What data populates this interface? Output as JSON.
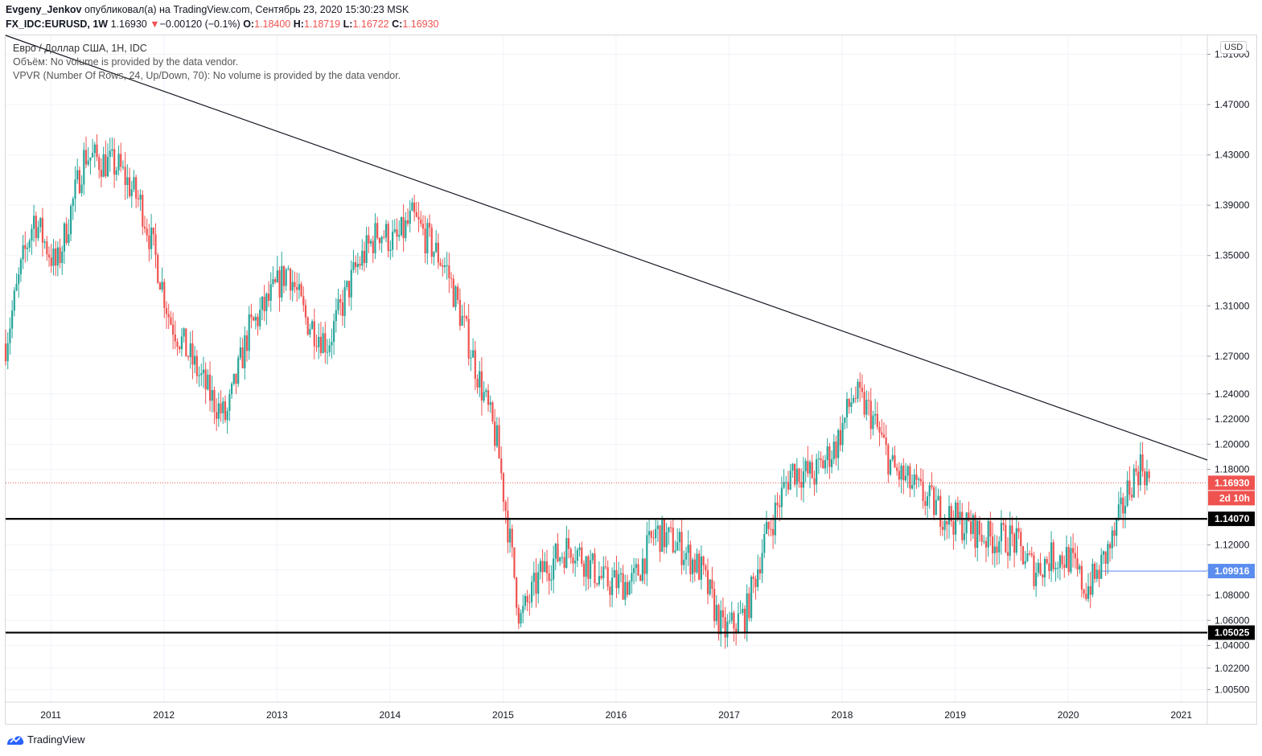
{
  "header": {
    "author": "Evgeny_Jenkov",
    "published": "опубликовал(а) на TradingView.com, Сентябрь 23, 2020 15:30:23 MSK",
    "symbol": "FX_IDC:EURUSD, 1W",
    "last": "1.16930",
    "change_arrow": "▼",
    "change": "−0.00120 (−0.1%)",
    "o_label": "O:",
    "o": "1.18400",
    "h_label": "H:",
    "h": "1.18719",
    "l_label": "L:",
    "l": "1.16722",
    "c_label": "C:",
    "c": "1.16930"
  },
  "legend": {
    "title": "Евро / Доллар США, 1H, IDC",
    "volume": "Объём: No volume is provided by the data vendor.",
    "vpvr": "VPVR (Number Of Rows, 24, Up/Down, 70): No volume is provided by the data vendor."
  },
  "currency": "USD",
  "footer": {
    "brand": "TradingView"
  },
  "colors": {
    "up": "#26a69a",
    "down": "#ef5350",
    "grid": "#f0f3fa",
    "trend": "#131722",
    "level": "#000000",
    "price_line": "#ef5350",
    "blue_level": "#5b8def"
  },
  "chart_data": {
    "type": "candlestick",
    "title": "Евро / Доллар США, 1H, IDC",
    "y_ticks": [
      "1.51000",
      "1.47000",
      "1.43000",
      "1.39000",
      "1.35000",
      "1.31000",
      "1.27000",
      "1.24000",
      "1.22000",
      "1.20000",
      "1.18000",
      "1.12000",
      "1.10000",
      "1.08000",
      "1.06000",
      "1.04000",
      "1.02200",
      "1.00500"
    ],
    "x_ticks": [
      "2011",
      "2012",
      "2013",
      "2014",
      "2015",
      "2016",
      "2017",
      "2018",
      "2019",
      "2020",
      "2021"
    ],
    "ylim": [
      0.995,
      1.525
    ],
    "xlim": [
      2010.6,
      2021.23
    ],
    "grid": true,
    "price_markers": [
      {
        "value": 1.1693,
        "label": "1.16930",
        "sublabel": "2d 10h",
        "kind": "last"
      },
      {
        "value": 1.1407,
        "label": "1.14070",
        "kind": "level"
      },
      {
        "value": 1.09916,
        "label": "1.09916",
        "kind": "blue"
      },
      {
        "value": 1.05025,
        "label": "1.05025",
        "kind": "level"
      }
    ],
    "trendline": {
      "x": [
        2010.6,
        2021.23
      ],
      "y": [
        1.525,
        1.1875
      ]
    },
    "horizontal_levels": [
      1.1407,
      1.05025
    ],
    "blue_level": {
      "x_start": 2020.3,
      "value": 1.09916
    },
    "close_path": {
      "x": [
        2010.6,
        2010.75,
        2010.85,
        2011.05,
        2011.3,
        2011.6,
        2011.8,
        2011.95,
        2012.05,
        2012.4,
        2012.55,
        2012.75,
        2012.9,
        2013.1,
        2013.25,
        2013.45,
        2013.7,
        2013.9,
        2014.05,
        2014.2,
        2014.35,
        2014.5,
        2014.7,
        2014.95,
        2015.05,
        2015.15,
        2015.35,
        2015.6,
        2015.9,
        2016.15,
        2016.35,
        2016.55,
        2016.75,
        2016.95,
        2017.15,
        2017.3,
        2017.55,
        2017.75,
        2017.95,
        2018.1,
        2018.25,
        2018.45,
        2018.7,
        2018.9,
        2019.1,
        2019.3,
        2019.5,
        2019.7,
        2019.85,
        2020.0,
        2020.15,
        2020.25,
        2020.4,
        2020.55,
        2020.65,
        2020.72
      ],
      "y": [
        1.28,
        1.345,
        1.38,
        1.34,
        1.43,
        1.42,
        1.39,
        1.34,
        1.3,
        1.24,
        1.22,
        1.29,
        1.31,
        1.34,
        1.3,
        1.28,
        1.34,
        1.37,
        1.36,
        1.38,
        1.36,
        1.34,
        1.28,
        1.2,
        1.13,
        1.06,
        1.1,
        1.12,
        1.09,
        1.09,
        1.13,
        1.12,
        1.1,
        1.05,
        1.065,
        1.12,
        1.18,
        1.175,
        1.2,
        1.24,
        1.225,
        1.18,
        1.16,
        1.145,
        1.135,
        1.125,
        1.125,
        1.1,
        1.11,
        1.11,
        1.085,
        1.095,
        1.125,
        1.17,
        1.185,
        1.1693
      ]
    }
  }
}
